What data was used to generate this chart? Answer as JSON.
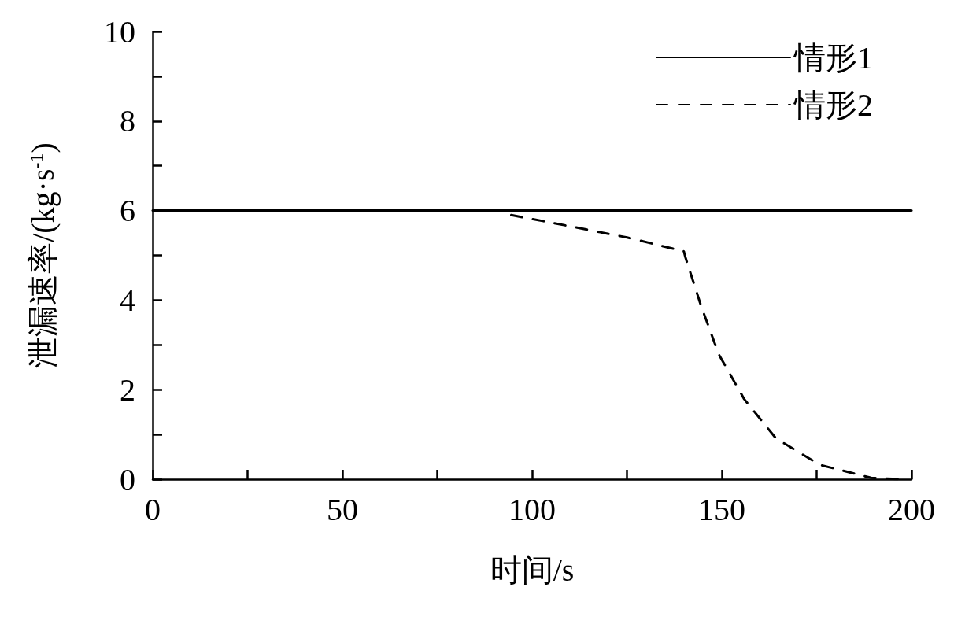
{
  "chart_data": {
    "type": "line",
    "xlabel": "时间/s",
    "ylabel": "泄漏速率/(kg·s$^{-1}$)",
    "xlim": [
      0,
      200
    ],
    "ylim": [
      0,
      10
    ],
    "xticks": [
      0,
      {
        "value": 25,
        "label": null
      },
      50,
      {
        "value": 75,
        "label": null
      },
      100,
      {
        "value": 125,
        "label": null
      },
      150,
      {
        "value": 175,
        "label": null
      },
      200
    ],
    "yticks": [
      0,
      {
        "value": 1,
        "label": null
      },
      2,
      {
        "value": 3,
        "label": null
      },
      4,
      {
        "value": 5,
        "label": null
      },
      6,
      {
        "value": 7,
        "label": null
      },
      8,
      {
        "value": 9,
        "label": null
      },
      10
    ],
    "grid": false,
    "legend": "top right",
    "marker": "none",
    "series": [
      {
        "name": "情形1",
        "color": "#000000",
        "line_style": "solid",
        "x": [
          0,
          200
        ],
        "values": [
          6,
          6
        ]
      },
      {
        "name": "情形2",
        "color": "#000000",
        "line_style": "dashed",
        "x": [
          94.5,
          110,
          125,
          140,
          140.4,
          144.5,
          149.2,
          155.9,
          164.3,
          175.9,
          189.4,
          197.6
        ],
        "values": [
          5.9,
          5.65,
          5.4,
          5.09,
          4.96,
          3.88,
          2.79,
          1.79,
          0.91,
          0.32,
          0.03,
          0
        ]
      }
    ]
  }
}
